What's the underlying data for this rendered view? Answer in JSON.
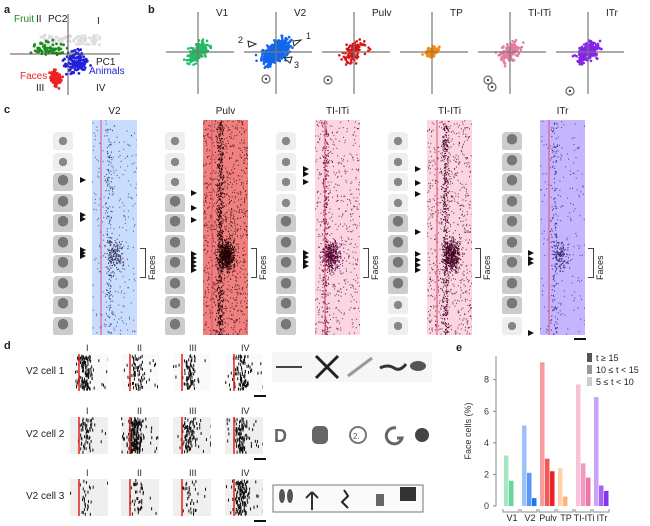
{
  "panel_a": {
    "label": "a",
    "axis_pc1": "PC1",
    "axis_pc2": "PC2",
    "quadrants": [
      "I",
      "II",
      "III",
      "IV"
    ],
    "categories": [
      {
        "name": "Fruit",
        "color": "#1e8a1e"
      },
      {
        "name": "Faces",
        "color": "#ee2222"
      },
      {
        "name": "Animals",
        "color": "#2222dd"
      }
    ]
  },
  "panel_b": {
    "label": "b",
    "plots": [
      {
        "name": "V1",
        "color": "#22bb66"
      },
      {
        "name": "V2",
        "color": "#1166ee"
      },
      {
        "name": "Pulv",
        "color": "#dd1111"
      },
      {
        "name": "TP",
        "color": "#ff8800"
      },
      {
        "name": "TI-ITi",
        "color": "#e87aa0"
      },
      {
        "name": "ITr",
        "color": "#8822ee"
      }
    ],
    "v2_markers": [
      "1",
      "2",
      "3"
    ]
  },
  "panel_c": {
    "label": "c",
    "rasters": [
      {
        "title": "V2",
        "bg": "#c7dcff"
      },
      {
        "title": "Pulv",
        "bg": "#f08080"
      },
      {
        "title": "TI-ITi",
        "bg": "#fbd5e2"
      },
      {
        "title": "TI-ITi",
        "bg": "#fbd5e2"
      },
      {
        "title": "ITr",
        "bg": "#c5b5ff"
      }
    ],
    "faces_label": "Faces"
  },
  "panel_d": {
    "label": "d",
    "cells": [
      "V2 cell 1",
      "V2 cell 2",
      "V2 cell 3"
    ],
    "quadrants": [
      "I",
      "II",
      "III",
      "IV"
    ]
  },
  "panel_e": {
    "label": "e",
    "legend": [
      "t ≥ 15",
      "10 ≤ t < 15",
      "5 ≤ t < 10"
    ]
  },
  "chart_data": {
    "type": "bar",
    "title": "",
    "xlabel": "",
    "ylabel": "Face cells (%)",
    "ylim": [
      0,
      9.5
    ],
    "yticks": [
      0,
      2,
      4,
      6,
      8
    ],
    "categories": [
      "V1",
      "V2",
      "Pulv",
      "TP",
      "TI-ITi",
      "ITr"
    ],
    "colors": [
      "#33cc77",
      "#2277ee",
      "#ee2222",
      "#ff9944",
      "#ee77aa",
      "#8833ee"
    ],
    "series": [
      {
        "name": "5 ≤ t < 10",
        "values": [
          3.2,
          5.1,
          9.1,
          2.4,
          7.7,
          6.9
        ]
      },
      {
        "name": "10 ≤ t < 15",
        "values": [
          1.6,
          2.1,
          3.0,
          0.6,
          2.7,
          1.3
        ]
      },
      {
        "name": "t ≥ 15",
        "values": [
          0,
          0.5,
          2.2,
          0,
          1.8,
          0.95
        ]
      }
    ],
    "legend_position": "top-right"
  }
}
